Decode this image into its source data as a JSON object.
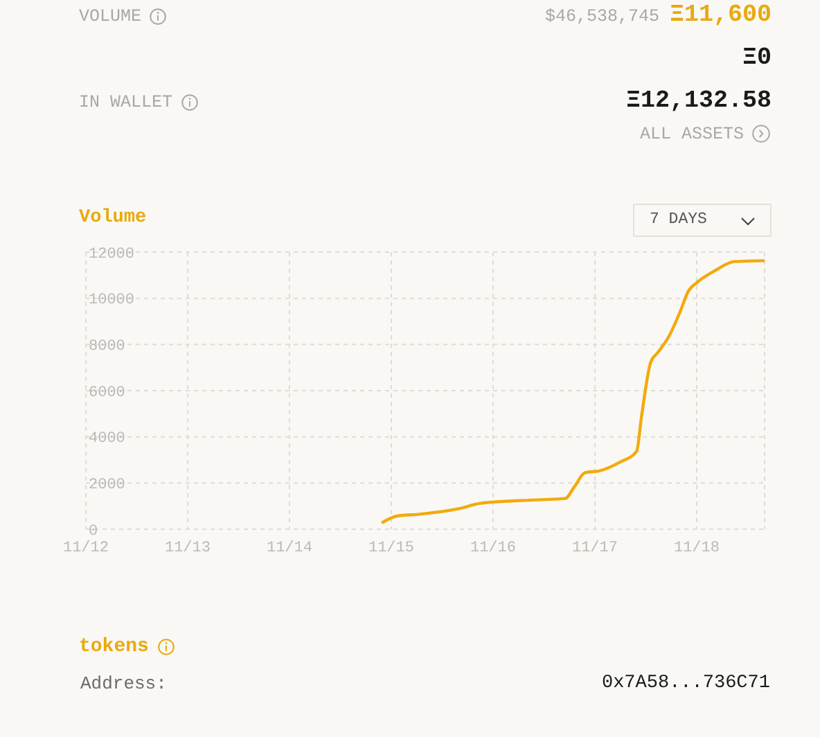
{
  "chart_data": {
    "type": "line",
    "title": "Volume",
    "annotations": [
      "VOLUME",
      "$46,538,745",
      "Ξ11,600",
      "Ξ0",
      "IN WALLET",
      "Ξ12,132.58",
      "ALL ASSETS",
      "7 DAYS",
      "tokens",
      "Address:",
      "0x7A58...736C71"
    ],
    "x": [
      "--11-14T22:00",
      "--11-15T01:20",
      "--11-15T06:40",
      "--11-15T15:40",
      "--11-15T21:00",
      "--11-16T00:15",
      "--11-16T08:50",
      "--11-16T17:00",
      "--11-16T19:10",
      "--11-16T21:40",
      "--11-17T01:10",
      "--11-17T05:50",
      "--11-17T09:50",
      "--11-17T11:00",
      "--11-17T13:10",
      "--11-17T14:50",
      "--11-17T17:30",
      "--11-17T20:00",
      "--11-17T22:00",
      "--11-18T00:15",
      "--11-18T04:30",
      "--11-18T08:50",
      "--11-18T16:00"
    ],
    "values": [
      300,
      570,
      650,
      880,
      1120,
      1180,
      1260,
      1330,
      1840,
      2450,
      2530,
      2900,
      3370,
      4900,
      7240,
      7650,
      8370,
      9380,
      10300,
      10710,
      11220,
      11590,
      11630
    ],
    "color": "#f2aa0c",
    "xlim": [
      "--11-12",
      "--11-18T16:00"
    ],
    "xticks": [
      {
        "value": "--11-12",
        "label": "11/12"
      },
      {
        "value": "--11-13",
        "label": "11/13"
      },
      {
        "value": "--11-14",
        "label": "11/14"
      },
      {
        "value": "--11-15",
        "label": "11/15"
      },
      {
        "value": "--11-16",
        "label": "11/16"
      },
      {
        "value": "--11-17",
        "label": "11/17"
      },
      {
        "value": "--11-18",
        "label": "11/18"
      }
    ],
    "ylim": [
      0,
      12000
    ],
    "yticks": [
      0,
      2000,
      4000,
      6000,
      8000,
      10000,
      12000
    ],
    "grid": true,
    "marker": "none",
    "line_style": "solid"
  }
}
